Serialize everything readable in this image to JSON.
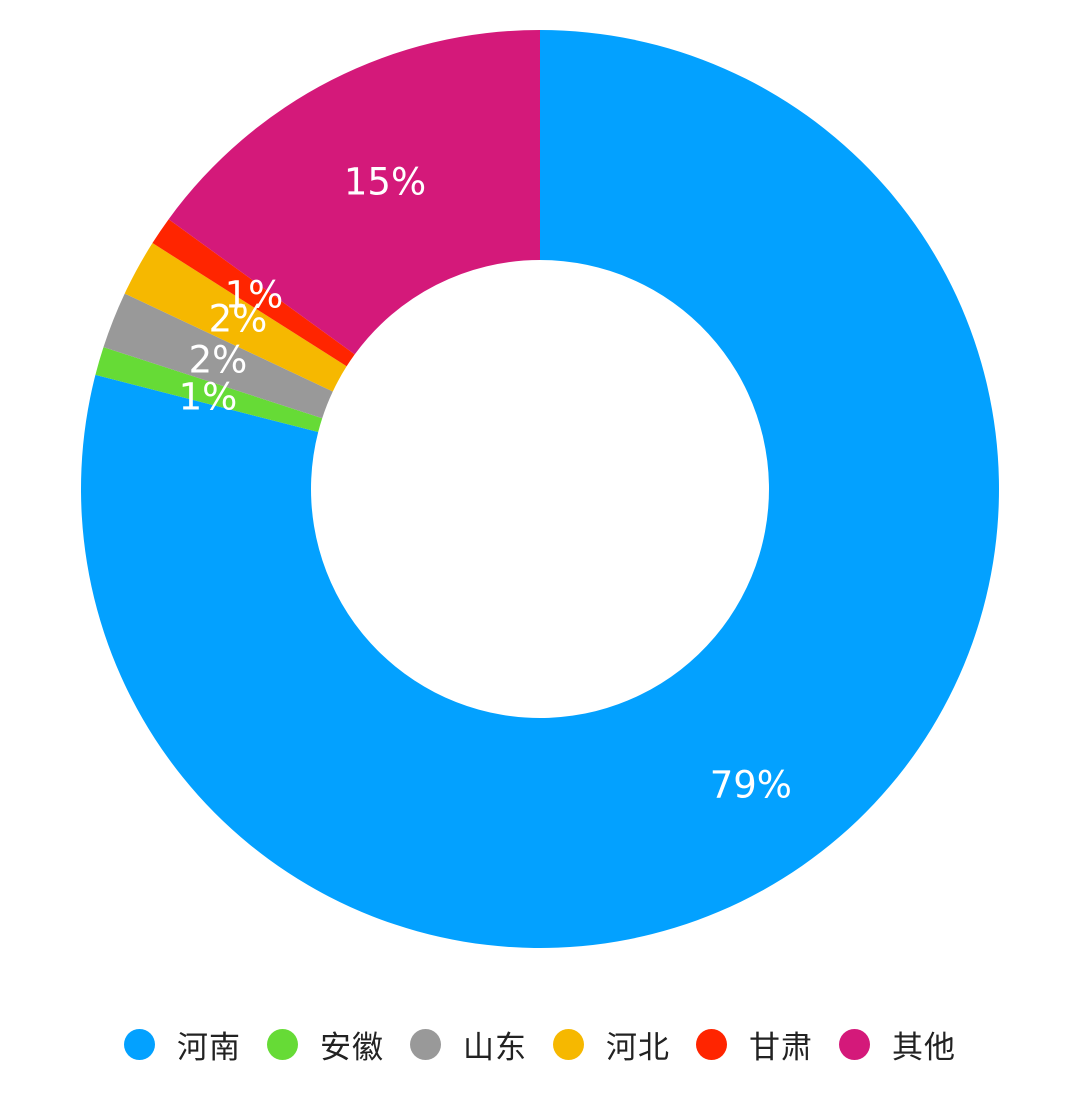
{
  "chart_data": {
    "type": "pie",
    "variant": "donut",
    "start": "top, clockwise",
    "categories": [
      "河南",
      "安徽",
      "山东",
      "河北",
      "甘肃",
      "其他"
    ],
    "values": [
      79,
      1,
      2,
      2,
      1,
      15
    ],
    "labels": [
      "79%",
      "1%",
      "2%",
      "2%",
      "1%",
      "15%"
    ],
    "colors": [
      "#03A1FF",
      "#66DB36",
      "#999999",
      "#F6B800",
      "#FF2500",
      "#D4197A"
    ],
    "legend_position": "bottom"
  }
}
